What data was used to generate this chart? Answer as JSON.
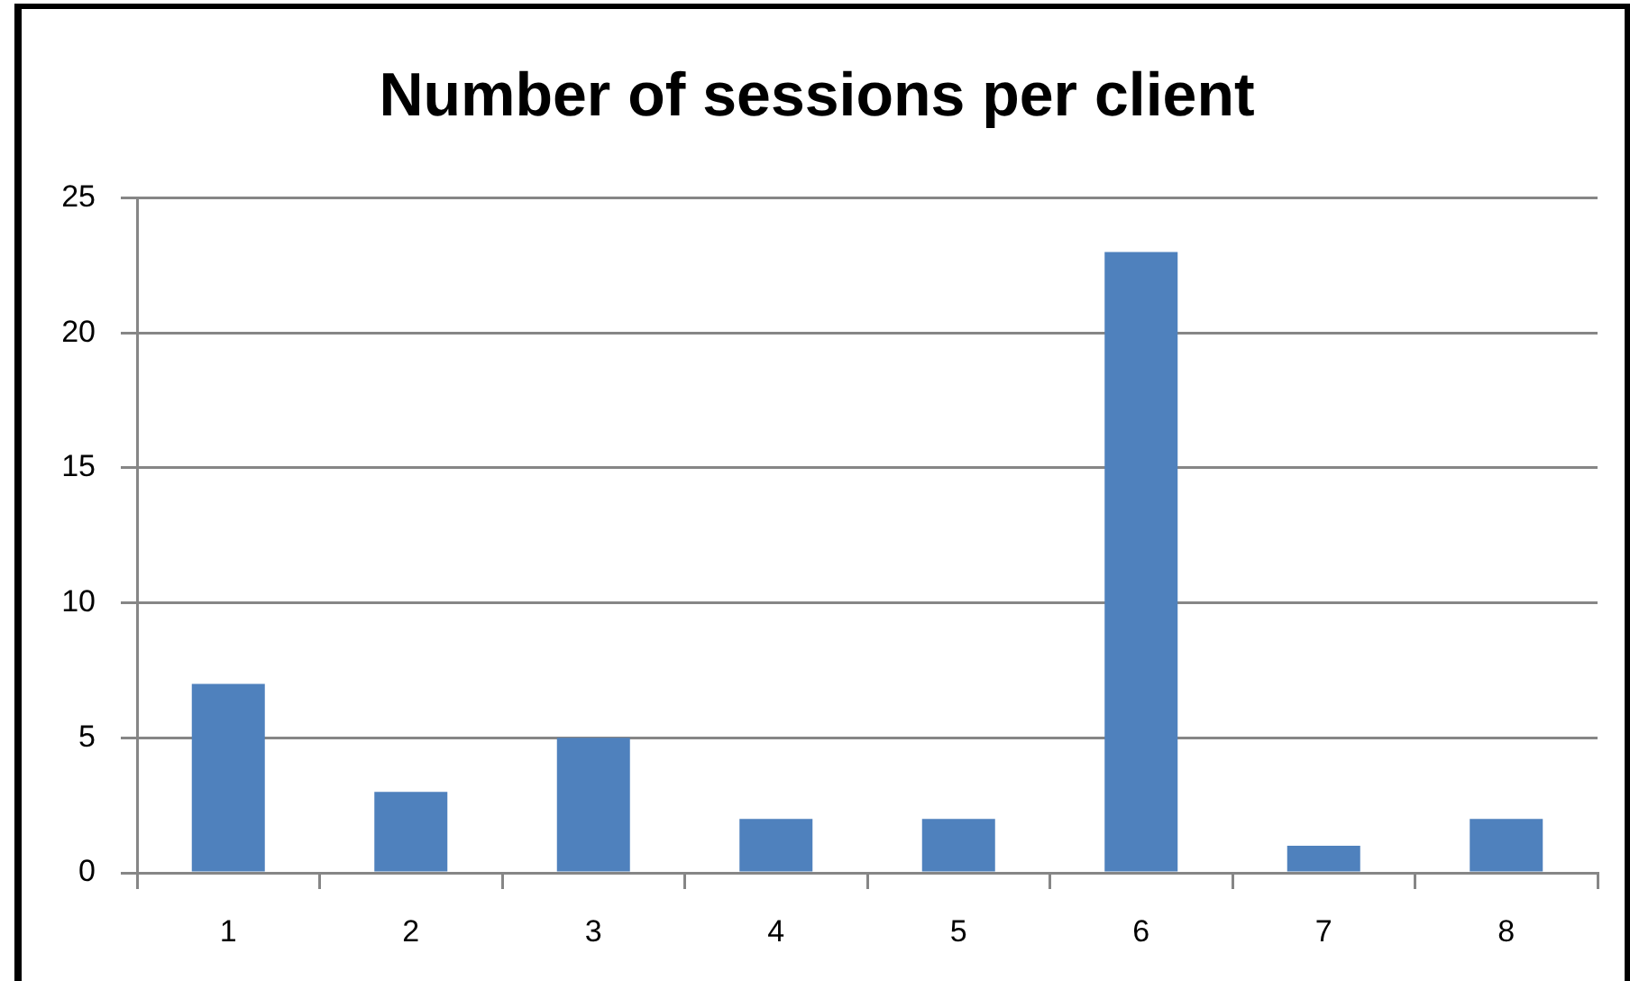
{
  "chart_data": {
    "type": "bar",
    "title": "Number of sessions per client",
    "categories": [
      "1",
      "2",
      "3",
      "4",
      "5",
      "6",
      "7",
      "8"
    ],
    "values": [
      7,
      3,
      5,
      2,
      2,
      23,
      1,
      2
    ],
    "color": "#4f81bd",
    "ylim": [
      0,
      25
    ],
    "yticks": [
      0,
      5,
      10,
      15,
      20,
      25
    ],
    "grid": "y"
  }
}
